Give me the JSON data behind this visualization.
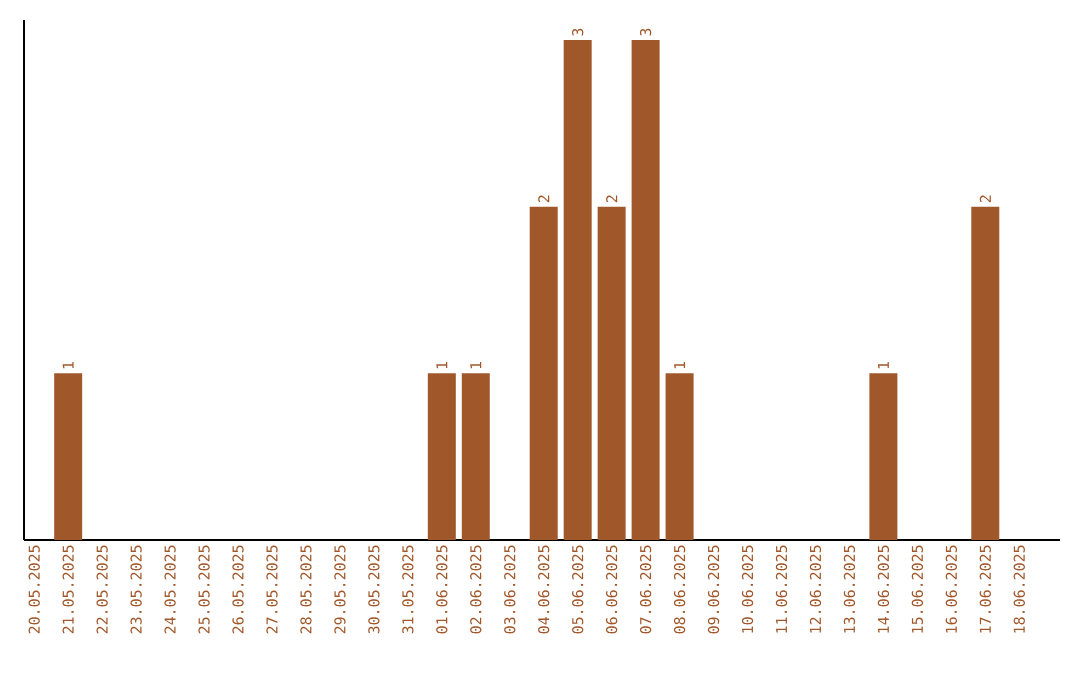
{
  "chart_data": {
    "type": "bar",
    "categories": [
      "20.05.2025",
      "21.05.2025",
      "22.05.2025",
      "23.05.2025",
      "24.05.2025",
      "25.05.2025",
      "26.05.2025",
      "27.05.2025",
      "28.05.2025",
      "29.05.2025",
      "30.05.2025",
      "31.05.2025",
      "01.06.2025",
      "02.06.2025",
      "03.06.2025",
      "04.06.2025",
      "05.06.2025",
      "06.06.2025",
      "07.06.2025",
      "08.06.2025",
      "09.06.2025",
      "10.06.2025",
      "11.06.2025",
      "12.06.2025",
      "13.06.2025",
      "14.06.2025",
      "15.06.2025",
      "16.06.2025",
      "17.06.2025",
      "18.06.2025"
    ],
    "values": [
      0,
      1,
      0,
      0,
      0,
      0,
      0,
      0,
      0,
      0,
      0,
      0,
      1,
      1,
      0,
      2,
      3,
      2,
      3,
      1,
      0,
      0,
      0,
      0,
      0,
      1,
      0,
      0,
      2,
      0
    ],
    "value_labels": [
      null,
      "1",
      null,
      null,
      null,
      null,
      null,
      null,
      null,
      null,
      null,
      null,
      "1",
      "1",
      null,
      "2",
      "3",
      "2",
      "3",
      "1",
      null,
      null,
      null,
      null,
      null,
      "1",
      null,
      null,
      "2",
      null
    ],
    "color": "#a0572a"
  }
}
